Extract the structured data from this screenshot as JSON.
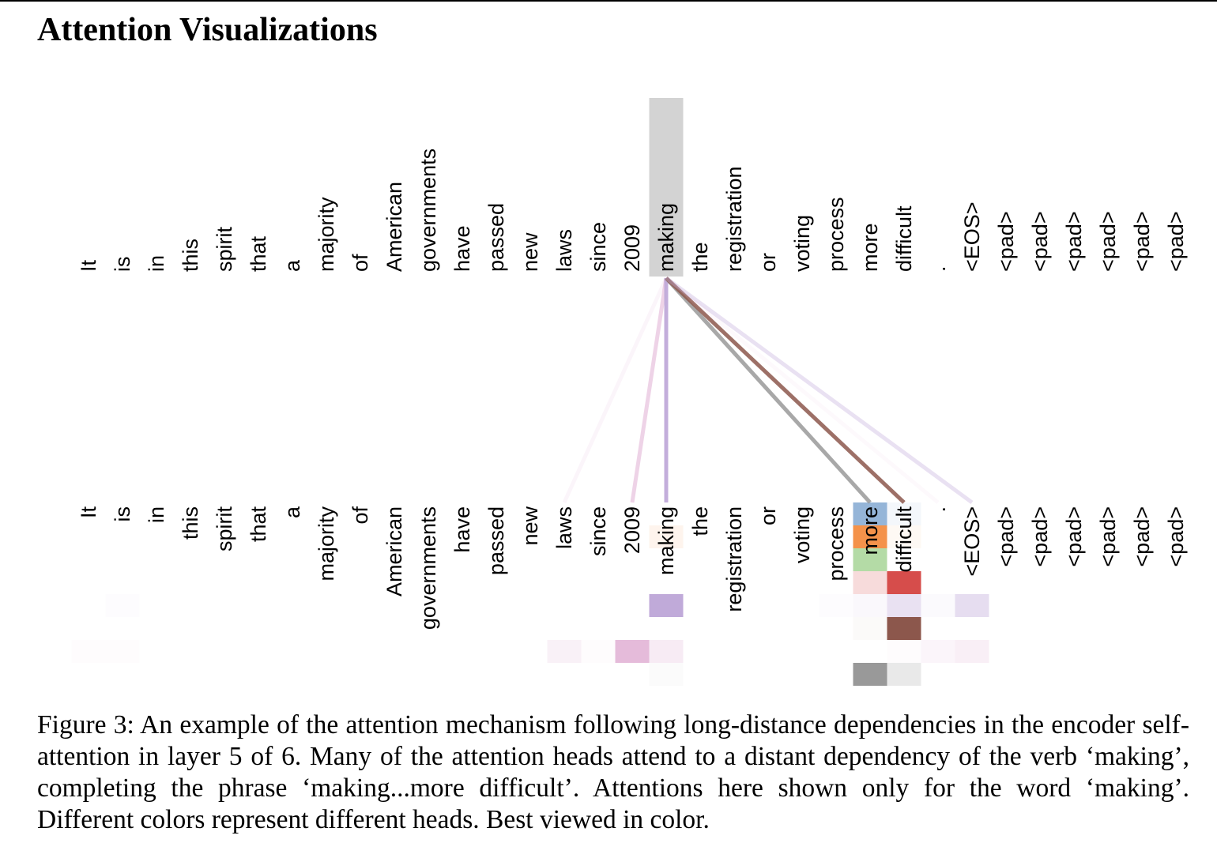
{
  "title": "Attention Visualizations",
  "tokens": [
    "It",
    "is",
    "in",
    "this",
    "spirit",
    "that",
    "a",
    "majority",
    "of",
    "American",
    "governments",
    "have",
    "passed",
    "new",
    "laws",
    "since",
    "2009",
    "making",
    "the",
    "registration",
    "or",
    "voting",
    "process",
    "more",
    "difficult",
    ".",
    "<EOS>",
    "<pad>",
    "<pad>",
    "<pad>",
    "<pad>",
    "<pad>",
    "<pad>"
  ],
  "query_token_index": 17,
  "query_highlight_color": "#d3d3d3",
  "head_colors": [
    "#95b5d8",
    "#f4924a",
    "#b4dba6",
    "#d64d4b",
    "#c0aad9",
    "#8c574c",
    "#e0afd4",
    "#999999"
  ],
  "attention_links": [
    {
      "target": 14,
      "head": 6,
      "weight": 0.12
    },
    {
      "target": 16,
      "head": 6,
      "weight": 0.55
    },
    {
      "target": 17,
      "head": 4,
      "weight": 0.95
    },
    {
      "target": 23,
      "head": 7,
      "weight": 0.85
    },
    {
      "target": 24,
      "head": 5,
      "weight": 0.85
    },
    {
      "target": 25,
      "head": 6,
      "weight": 0.08
    },
    {
      "target": 26,
      "head": 4,
      "weight": 0.35
    }
  ],
  "attention_cells": [
    {
      "token": 17,
      "head": 1,
      "weight": 0.1
    },
    {
      "token": 23,
      "head": 0,
      "weight": 1.0
    },
    {
      "token": 24,
      "head": 0,
      "weight": 0.1
    },
    {
      "token": 23,
      "head": 1,
      "weight": 1.0
    },
    {
      "token": 24,
      "head": 1,
      "weight": 0.06
    },
    {
      "token": 23,
      "head": 2,
      "weight": 1.0
    },
    {
      "token": 23,
      "head": 3,
      "weight": 0.2
    },
    {
      "token": 24,
      "head": 3,
      "weight": 1.0
    },
    {
      "token": 1,
      "head": 4,
      "weight": 0.03
    },
    {
      "token": 17,
      "head": 4,
      "weight": 1.0
    },
    {
      "token": 22,
      "head": 4,
      "weight": 0.03
    },
    {
      "token": 23,
      "head": 4,
      "weight": 0.08
    },
    {
      "token": 24,
      "head": 4,
      "weight": 0.35
    },
    {
      "token": 25,
      "head": 4,
      "weight": 0.06
    },
    {
      "token": 26,
      "head": 4,
      "weight": 0.4
    },
    {
      "token": 23,
      "head": 5,
      "weight": 0.03
    },
    {
      "token": 24,
      "head": 5,
      "weight": 1.0
    },
    {
      "token": 0,
      "head": 6,
      "weight": 0.04
    },
    {
      "token": 1,
      "head": 6,
      "weight": 0.04
    },
    {
      "token": 14,
      "head": 6,
      "weight": 0.18
    },
    {
      "token": 15,
      "head": 6,
      "weight": 0.04
    },
    {
      "token": 16,
      "head": 6,
      "weight": 0.85
    },
    {
      "token": 17,
      "head": 6,
      "weight": 0.25
    },
    {
      "token": 24,
      "head": 6,
      "weight": 0.04
    },
    {
      "token": 25,
      "head": 6,
      "weight": 0.12
    },
    {
      "token": 26,
      "head": 6,
      "weight": 0.2
    },
    {
      "token": 17,
      "head": 7,
      "weight": 0.04
    },
    {
      "token": 23,
      "head": 7,
      "weight": 1.0
    },
    {
      "token": 24,
      "head": 7,
      "weight": 0.22
    }
  ],
  "caption": "Figure 3:  An example of the attention mechanism following long-distance dependencies in the encoder self-attention in layer 5 of 6. Many of the attention heads attend to a distant dependency of the verb ‘making’, completing the phrase ‘making...more difficult’. Attentions here shown only for the word ‘making’. Different colors represent different heads. Best viewed in color."
}
